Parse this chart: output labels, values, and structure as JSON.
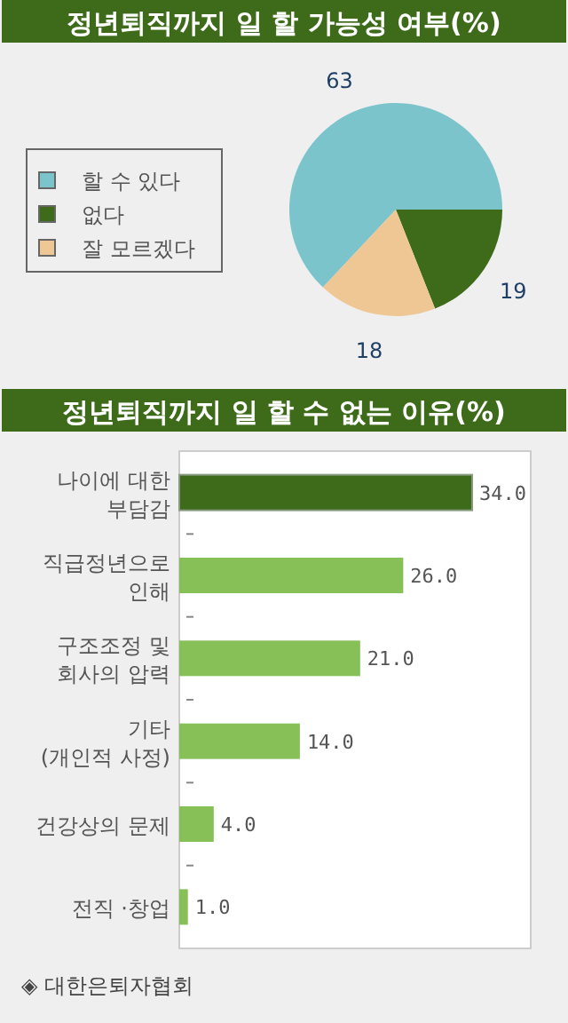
{
  "chart_data": [
    {
      "type": "pie",
      "title": "정년퇴직까지 일 할 가능성 여부(%)",
      "categories": [
        "할 수 있다",
        "없다",
        "잘 모르겠다"
      ],
      "values": [
        63,
        19,
        18
      ],
      "colors": [
        "#7cc4cc",
        "#3d6b19",
        "#eec795"
      ],
      "data_labels": true,
      "legend": "left"
    },
    {
      "type": "bar",
      "orientation": "horizontal",
      "title": "정년퇴직까지 일 할 수 없는 이유(%)",
      "categories": [
        "나이에 대한\n부담감",
        "직급정년으로\n인해",
        "구조조정 및\n회사의 압력",
        "기타\n(개인적 사정)",
        "건강상의 문제",
        "전직 ·창업"
      ],
      "values": [
        34,
        26,
        21,
        14,
        4,
        1
      ],
      "colors": [
        "#3d6b19",
        "#86c057",
        "#86c057",
        "#86c057",
        "#86c057",
        "#86c057"
      ],
      "value_labels": [
        "34.0",
        "26.0",
        "21.0",
        "14.0",
        "4.0",
        "1.0"
      ],
      "annotations": [
        "◈ 대한은퇴자협회"
      ]
    }
  ]
}
